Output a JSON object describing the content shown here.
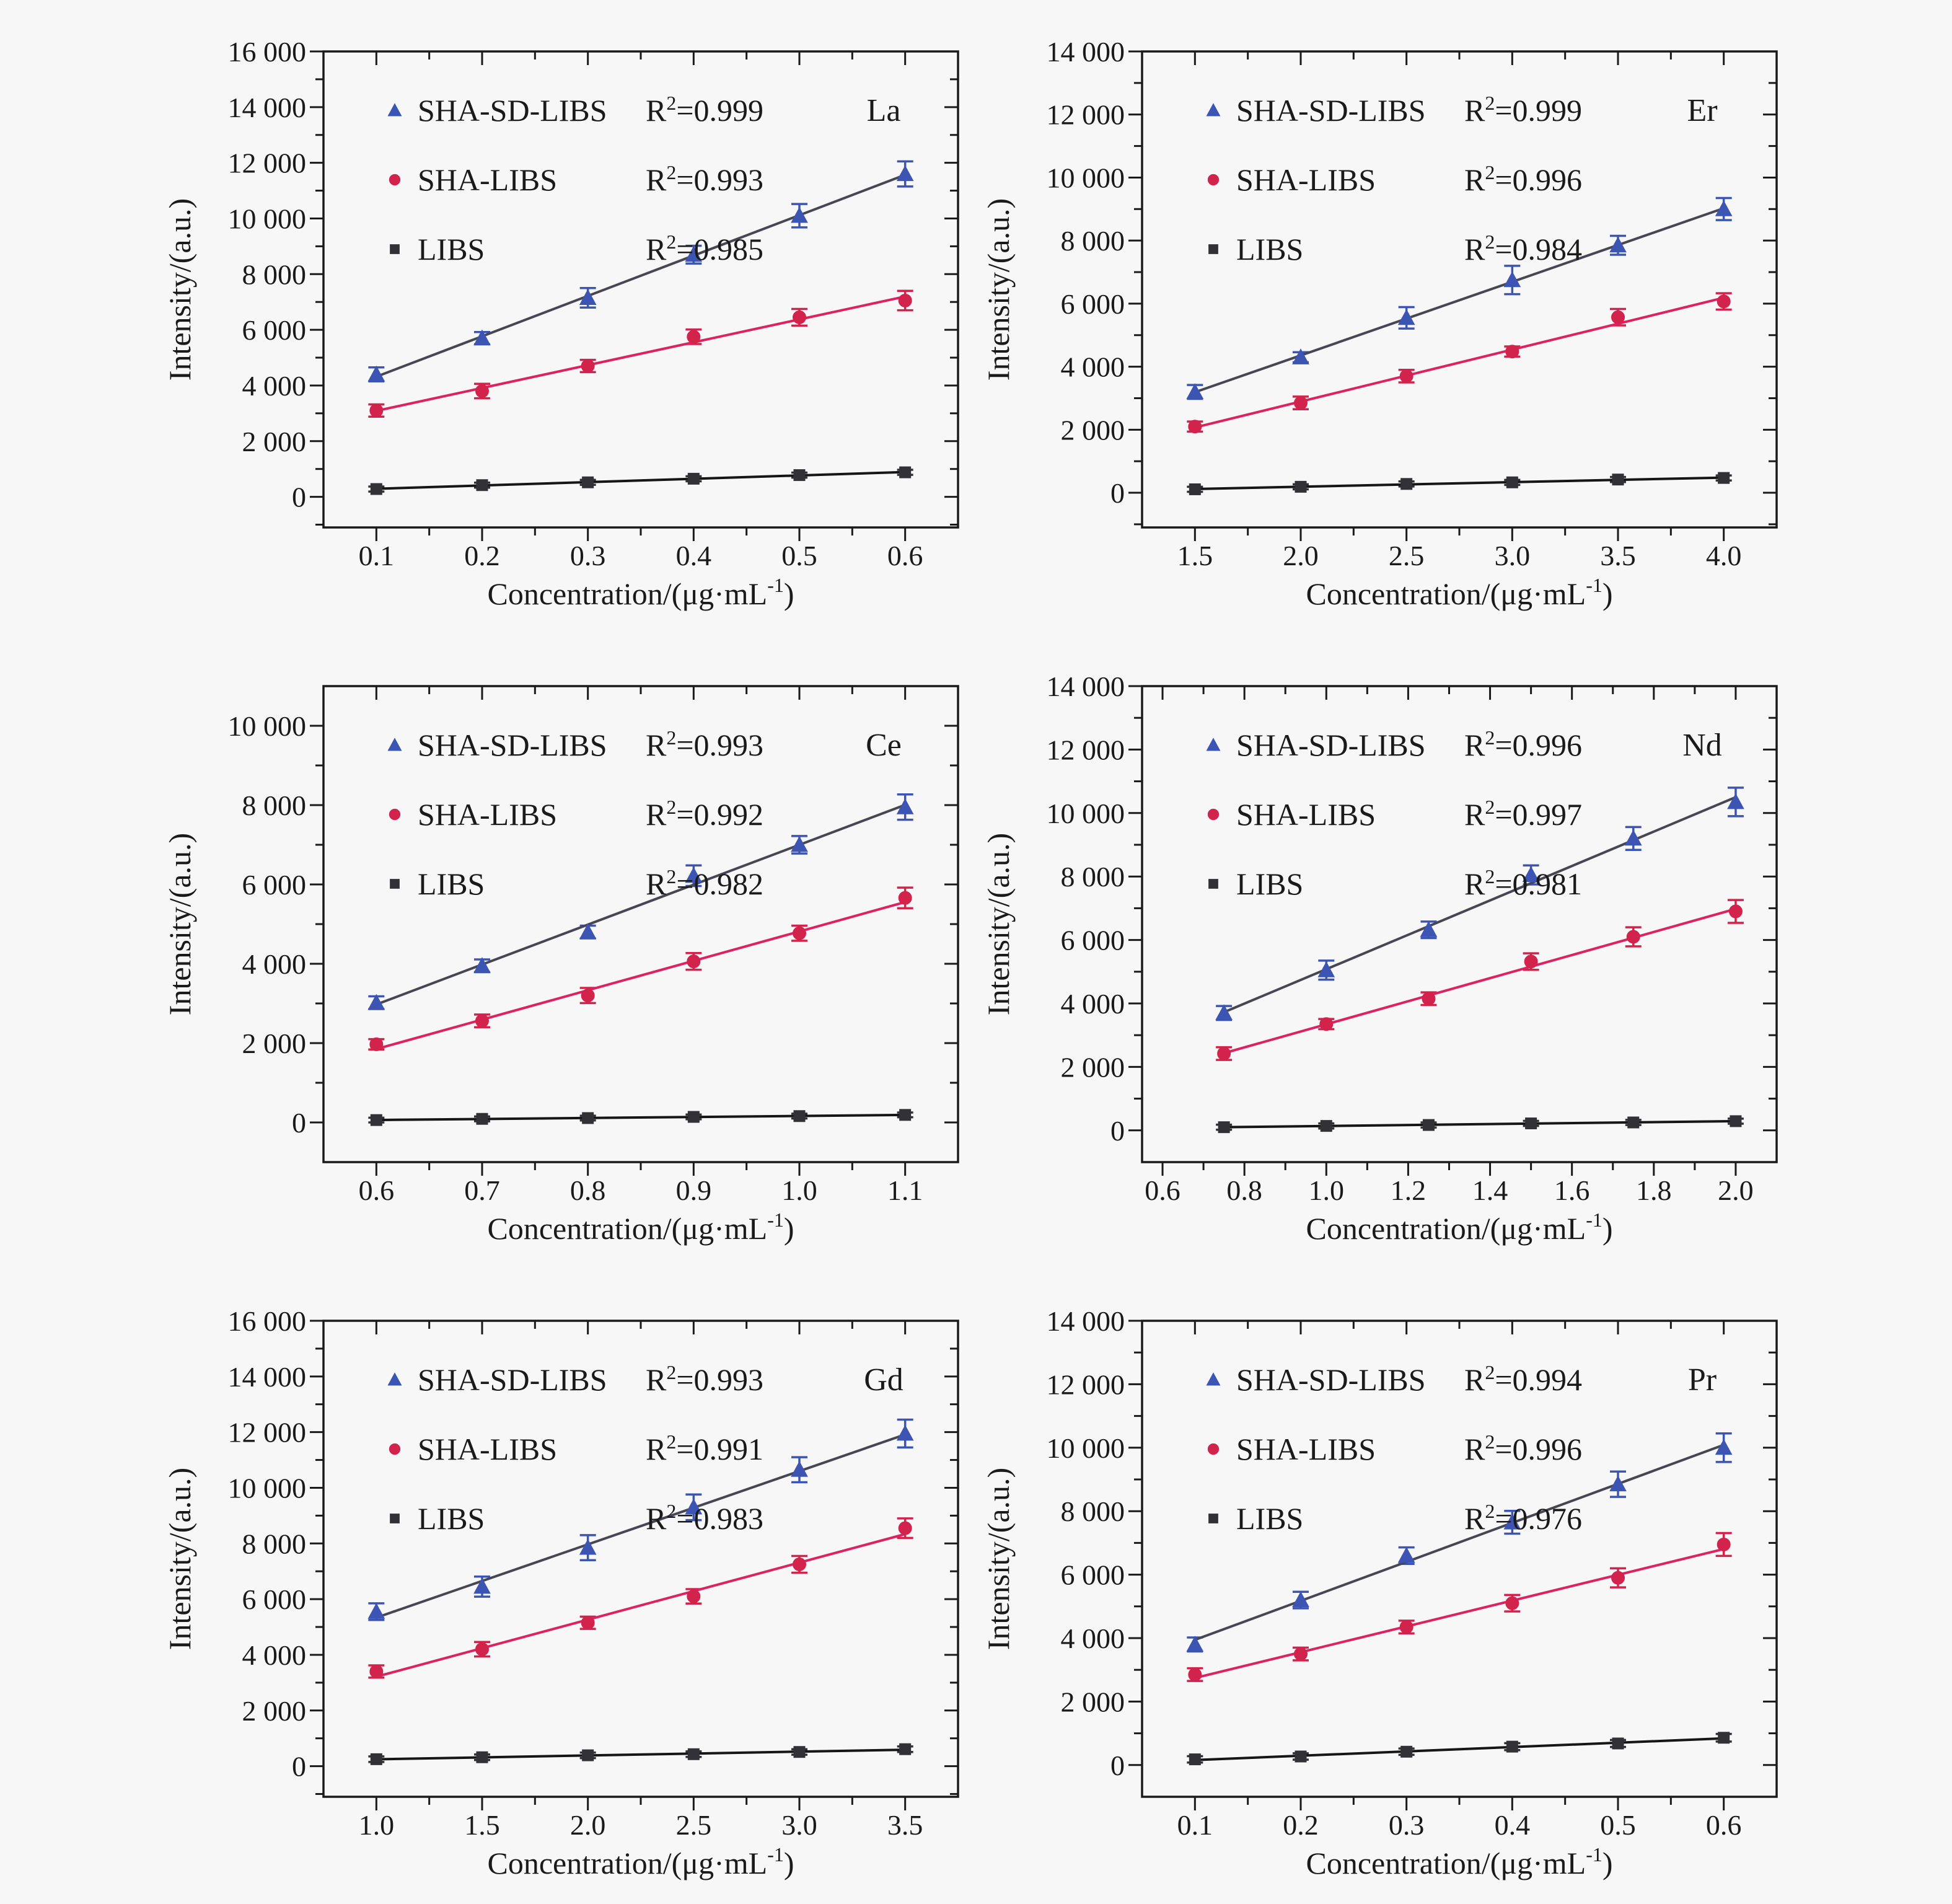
{
  "figure": {
    "background": "#f7f7f7",
    "frame_color": "#1a1a1a",
    "text_color": "#1a1a1a",
    "ylabel": "Intensity/(a.u.)",
    "xlabel_main": "Concentration/(μg·mL",
    "xlabel_sup": "-1",
    "xlabel_end": ")",
    "r2_prefix": "R",
    "r2_sup": "2",
    "r2_eq": "=",
    "series": [
      {
        "name": "SHA-SD-LIBS",
        "marker": "triangle",
        "marker_color": "#3d55b2",
        "line_color": "#474754"
      },
      {
        "name": "SHA-LIBS",
        "marker": "circle",
        "marker_color": "#d2234c",
        "line_color": "#dd2260"
      },
      {
        "name": "LIBS",
        "marker": "square",
        "marker_color": "#323236",
        "line_color": "#161616"
      }
    ]
  },
  "chart_data": [
    {
      "type": "scatter",
      "element": "La",
      "xlabel": "Concentration/(μg·mL-1)",
      "ylabel": "Intensity/(a.u.)",
      "x": [
        0.1,
        0.2,
        0.3,
        0.4,
        0.5,
        0.6
      ],
      "xlim": [
        0.05,
        0.65
      ],
      "ylim": [
        -1100,
        16000
      ],
      "xticks": [
        {
          "v": 0.1,
          "label": "0.1"
        },
        {
          "v": 0.2,
          "label": "0.2"
        },
        {
          "v": 0.3,
          "label": "0.3"
        },
        {
          "v": 0.4,
          "label": "0.4"
        },
        {
          "v": 0.5,
          "label": "0.5"
        },
        {
          "v": 0.6,
          "label": "0.6"
        }
      ],
      "yticks": [
        {
          "v": 0,
          "label": "0"
        },
        {
          "v": 2000,
          "label": "2 000"
        },
        {
          "v": 4000,
          "label": "4 000"
        },
        {
          "v": 6000,
          "label": "6 000"
        },
        {
          "v": 8000,
          "label": "8 000"
        },
        {
          "v": 10000,
          "label": "10 000"
        },
        {
          "v": 12000,
          "label": "12 000"
        },
        {
          "v": 14000,
          "label": "14 000"
        },
        {
          "v": 16000,
          "label": "16 000"
        }
      ],
      "r2": [
        "0.999",
        "0.993",
        "0.985"
      ],
      "series_values": [
        {
          "v": [
            4400,
            5700,
            7150,
            8700,
            10100,
            11600
          ],
          "e": [
            250,
            220,
            350,
            320,
            420,
            450
          ]
        },
        {
          "v": [
            3100,
            3800,
            4700,
            5750,
            6450,
            7050
          ],
          "e": [
            220,
            260,
            220,
            260,
            300,
            350
          ]
        },
        {
          "v": [
            280,
            420,
            520,
            650,
            780,
            880
          ],
          "e": [
            90,
            90,
            90,
            90,
            90,
            90
          ]
        }
      ]
    },
    {
      "type": "scatter",
      "element": "Er",
      "xlabel": "Concentration/(μg·mL-1)",
      "ylabel": "Intensity/(a.u.)",
      "x": [
        1.5,
        2.0,
        2.5,
        3.0,
        3.5,
        4.0
      ],
      "xlim": [
        1.25,
        4.25
      ],
      "ylim": [
        -1100,
        14000
      ],
      "xticks": [
        {
          "v": 1.5,
          "label": "1.5"
        },
        {
          "v": 2.0,
          "label": "2.0"
        },
        {
          "v": 2.5,
          "label": "2.5"
        },
        {
          "v": 3.0,
          "label": "3.0"
        },
        {
          "v": 3.5,
          "label": "3.5"
        },
        {
          "v": 4.0,
          "label": "4.0"
        }
      ],
      "yticks": [
        {
          "v": 0,
          "label": "0"
        },
        {
          "v": 2000,
          "label": "2 000"
        },
        {
          "v": 4000,
          "label": "4 000"
        },
        {
          "v": 6000,
          "label": "6 000"
        },
        {
          "v": 8000,
          "label": "8 000"
        },
        {
          "v": 10000,
          "label": "10 000"
        },
        {
          "v": 12000,
          "label": "12 000"
        },
        {
          "v": 14000,
          "label": "14 000"
        }
      ],
      "r2": [
        "0.999",
        "0.996",
        "0.984"
      ],
      "series_values": [
        {
          "v": [
            3200,
            4300,
            5550,
            6750,
            7850,
            9000
          ],
          "e": [
            220,
            160,
            340,
            450,
            300,
            350
          ]
        },
        {
          "v": [
            2100,
            2850,
            3700,
            4480,
            5570,
            6070
          ],
          "e": [
            160,
            200,
            200,
            160,
            260,
            260
          ]
        },
        {
          "v": [
            110,
            190,
            280,
            330,
            420,
            470
          ],
          "e": [
            80,
            80,
            80,
            80,
            80,
            80
          ]
        }
      ]
    },
    {
      "type": "scatter",
      "element": "Ce",
      "xlabel": "Concentration/(μg·mL-1)",
      "ylabel": "Intensity/(a.u.)",
      "x": [
        0.6,
        0.7,
        0.8,
        0.9,
        1.0,
        1.1
      ],
      "xlim": [
        0.55,
        1.15
      ],
      "ylim": [
        -1000,
        11000
      ],
      "xticks": [
        {
          "v": 0.6,
          "label": "0.6"
        },
        {
          "v": 0.7,
          "label": "0.7"
        },
        {
          "v": 0.8,
          "label": "0.8"
        },
        {
          "v": 0.9,
          "label": "0.9"
        },
        {
          "v": 1.0,
          "label": "1.0"
        },
        {
          "v": 1.1,
          "label": "1.1"
        }
      ],
      "yticks": [
        {
          "v": 0,
          "label": "0"
        },
        {
          "v": 2000,
          "label": "2 000"
        },
        {
          "v": 4000,
          "label": "4 000"
        },
        {
          "v": 6000,
          "label": "6 000"
        },
        {
          "v": 8000,
          "label": "8 000"
        },
        {
          "v": 10000,
          "label": "10 000"
        }
      ],
      "r2": [
        "0.993",
        "0.992",
        "0.982"
      ],
      "series_values": [
        {
          "v": [
            3020,
            3950,
            4800,
            6220,
            7000,
            7950
          ],
          "e": [
            160,
            160,
            160,
            260,
            220,
            320
          ]
        },
        {
          "v": [
            1970,
            2560,
            3200,
            4060,
            4770,
            5660
          ],
          "e": [
            130,
            160,
            190,
            210,
            190,
            260
          ]
        },
        {
          "v": [
            60,
            90,
            110,
            140,
            160,
            190
          ],
          "e": [
            60,
            60,
            60,
            60,
            60,
            60
          ]
        }
      ]
    },
    {
      "type": "scatter",
      "element": "Nd",
      "xlabel": "Concentration/(μg·mL-1)",
      "ylabel": "Intensity/(a.u.)",
      "x": [
        0.75,
        1.0,
        1.25,
        1.5,
        1.75,
        2.0
      ],
      "xlim": [
        0.55,
        2.1
      ],
      "ylim": [
        -1000,
        14000
      ],
      "xticks": [
        {
          "v": 0.6,
          "label": "0.6"
        },
        {
          "v": 0.8,
          "label": "0.8"
        },
        {
          "v": 1.0,
          "label": "1.0"
        },
        {
          "v": 1.2,
          "label": "1.2"
        },
        {
          "v": 1.4,
          "label": "1.4"
        },
        {
          "v": 1.6,
          "label": "1.6"
        },
        {
          "v": 1.8,
          "label": "1.8"
        },
        {
          "v": 2.0,
          "label": "2.0"
        }
      ],
      "yticks": [
        {
          "v": 0,
          "label": "0"
        },
        {
          "v": 2000,
          "label": "2 000"
        },
        {
          "v": 4000,
          "label": "4 000"
        },
        {
          "v": 6000,
          "label": "6 000"
        },
        {
          "v": 8000,
          "label": "8 000"
        },
        {
          "v": 10000,
          "label": "10 000"
        },
        {
          "v": 12000,
          "label": "12 000"
        },
        {
          "v": 14000,
          "label": "14 000"
        }
      ],
      "r2": [
        "0.996",
        "0.997",
        "0.981"
      ],
      "series_values": [
        {
          "v": [
            3700,
            5050,
            6320,
            8050,
            9200,
            10350
          ],
          "e": [
            220,
            300,
            260,
            300,
            360,
            450
          ]
        },
        {
          "v": [
            2420,
            3350,
            4150,
            5320,
            6100,
            6900
          ],
          "e": [
            200,
            160,
            200,
            260,
            300,
            360
          ]
        },
        {
          "v": [
            100,
            140,
            170,
            220,
            250,
            290
          ],
          "e": [
            80,
            80,
            80,
            80,
            80,
            80
          ]
        }
      ]
    },
    {
      "type": "scatter",
      "element": "Gd",
      "xlabel": "Concentration/(μg·mL-1)",
      "ylabel": "Intensity/(a.u.)",
      "x": [
        1.0,
        1.5,
        2.0,
        2.5,
        3.0,
        3.5
      ],
      "xlim": [
        0.75,
        3.75
      ],
      "ylim": [
        -1100,
        16000
      ],
      "xticks": [
        {
          "v": 1.0,
          "label": "1.0"
        },
        {
          "v": 1.5,
          "label": "1.5"
        },
        {
          "v": 2.0,
          "label": "2.0"
        },
        {
          "v": 2.5,
          "label": "2.5"
        },
        {
          "v": 3.0,
          "label": "3.0"
        },
        {
          "v": 3.5,
          "label": "3.5"
        }
      ],
      "yticks": [
        {
          "v": 0,
          "label": "0"
        },
        {
          "v": 2000,
          "label": "2 000"
        },
        {
          "v": 4000,
          "label": "4 000"
        },
        {
          "v": 6000,
          "label": "6 000"
        },
        {
          "v": 8000,
          "label": "8 000"
        },
        {
          "v": 10000,
          "label": "10 000"
        },
        {
          "v": 12000,
          "label": "12 000"
        },
        {
          "v": 14000,
          "label": "14 000"
        },
        {
          "v": 16000,
          "label": "16 000"
        }
      ],
      "r2": [
        "0.993",
        "0.991",
        "0.983"
      ],
      "series_values": [
        {
          "v": [
            5550,
            6450,
            7850,
            9300,
            10650,
            11950
          ],
          "e": [
            300,
            360,
            450,
            460,
            450,
            500
          ]
        },
        {
          "v": [
            3400,
            4200,
            5150,
            6100,
            7250,
            8550
          ],
          "e": [
            220,
            260,
            220,
            260,
            300,
            350
          ]
        },
        {
          "v": [
            250,
            320,
            390,
            430,
            510,
            610
          ],
          "e": [
            100,
            100,
            100,
            100,
            100,
            100
          ]
        }
      ]
    },
    {
      "type": "scatter",
      "element": "Pr",
      "xlabel": "Concentration/(μg·mL-1)",
      "ylabel": "Intensity/(a.u.)",
      "x": [
        0.1,
        0.2,
        0.3,
        0.4,
        0.5,
        0.6
      ],
      "xlim": [
        0.05,
        0.65
      ],
      "ylim": [
        -1000,
        14000
      ],
      "xticks": [
        {
          "v": 0.1,
          "label": "0.1"
        },
        {
          "v": 0.2,
          "label": "0.2"
        },
        {
          "v": 0.3,
          "label": "0.3"
        },
        {
          "v": 0.4,
          "label": "0.4"
        },
        {
          "v": 0.5,
          "label": "0.5"
        },
        {
          "v": 0.6,
          "label": "0.6"
        }
      ],
      "yticks": [
        {
          "v": 0,
          "label": "0"
        },
        {
          "v": 2000,
          "label": "2 000"
        },
        {
          "v": 4000,
          "label": "4 000"
        },
        {
          "v": 6000,
          "label": "6 000"
        },
        {
          "v": 8000,
          "label": "8 000"
        },
        {
          "v": 10000,
          "label": "10 000"
        },
        {
          "v": 12000,
          "label": "12 000"
        },
        {
          "v": 14000,
          "label": "14 000"
        }
      ],
      "r2": [
        "0.994",
        "0.996",
        "0.976"
      ],
      "series_values": [
        {
          "v": [
            3800,
            5200,
            6600,
            7650,
            8850,
            10000
          ],
          "e": [
            220,
            260,
            260,
            360,
            400,
            450
          ]
        },
        {
          "v": [
            2850,
            3500,
            4350,
            5100,
            5900,
            6950
          ],
          "e": [
            200,
            200,
            200,
            260,
            300,
            360
          ]
        },
        {
          "v": [
            180,
            270,
            420,
            580,
            680,
            860
          ],
          "e": [
            100,
            100,
            100,
            110,
            110,
            120
          ]
        }
      ]
    }
  ]
}
